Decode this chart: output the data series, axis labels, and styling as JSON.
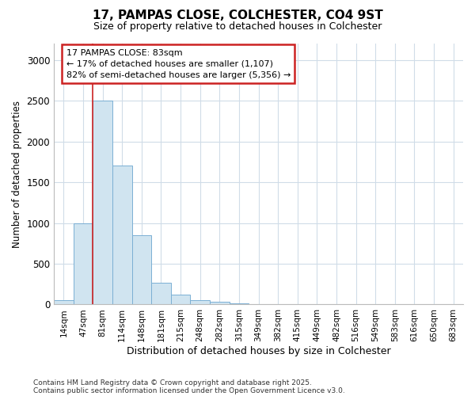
{
  "title_line1": "17, PAMPAS CLOSE, COLCHESTER, CO4 9ST",
  "title_line2": "Size of property relative to detached houses in Colchester",
  "xlabel": "Distribution of detached houses by size in Colchester",
  "ylabel": "Number of detached properties",
  "footnote1": "Contains HM Land Registry data © Crown copyright and database right 2025.",
  "footnote2": "Contains public sector information licensed under the Open Government Licence v3.0.",
  "bins": [
    "14sqm",
    "47sqm",
    "81sqm",
    "114sqm",
    "148sqm",
    "181sqm",
    "215sqm",
    "248sqm",
    "282sqm",
    "315sqm",
    "349sqm",
    "382sqm",
    "415sqm",
    "449sqm",
    "482sqm",
    "516sqm",
    "549sqm",
    "583sqm",
    "616sqm",
    "650sqm",
    "683sqm"
  ],
  "values": [
    50,
    1000,
    2500,
    1700,
    850,
    270,
    120,
    50,
    30,
    10,
    5,
    3,
    2,
    0,
    0,
    0,
    0,
    0,
    0,
    0,
    0
  ],
  "bar_color": "#d0e4f0",
  "bar_edge_color": "#7bafd4",
  "highlight_bin_index": 2,
  "highlight_color": "#cc2222",
  "annotation_title": "17 PAMPAS CLOSE: 83sqm",
  "annotation_line1": "← 17% of detached houses are smaller (1,107)",
  "annotation_line2": "82% of semi-detached houses are larger (5,356) →",
  "annotation_box_color": "#cc2222",
  "ylim": [
    0,
    3200
  ],
  "yticks": [
    0,
    500,
    1000,
    1500,
    2000,
    2500,
    3000
  ],
  "background_color": "#ffffff",
  "grid_color": "#d0dce8"
}
